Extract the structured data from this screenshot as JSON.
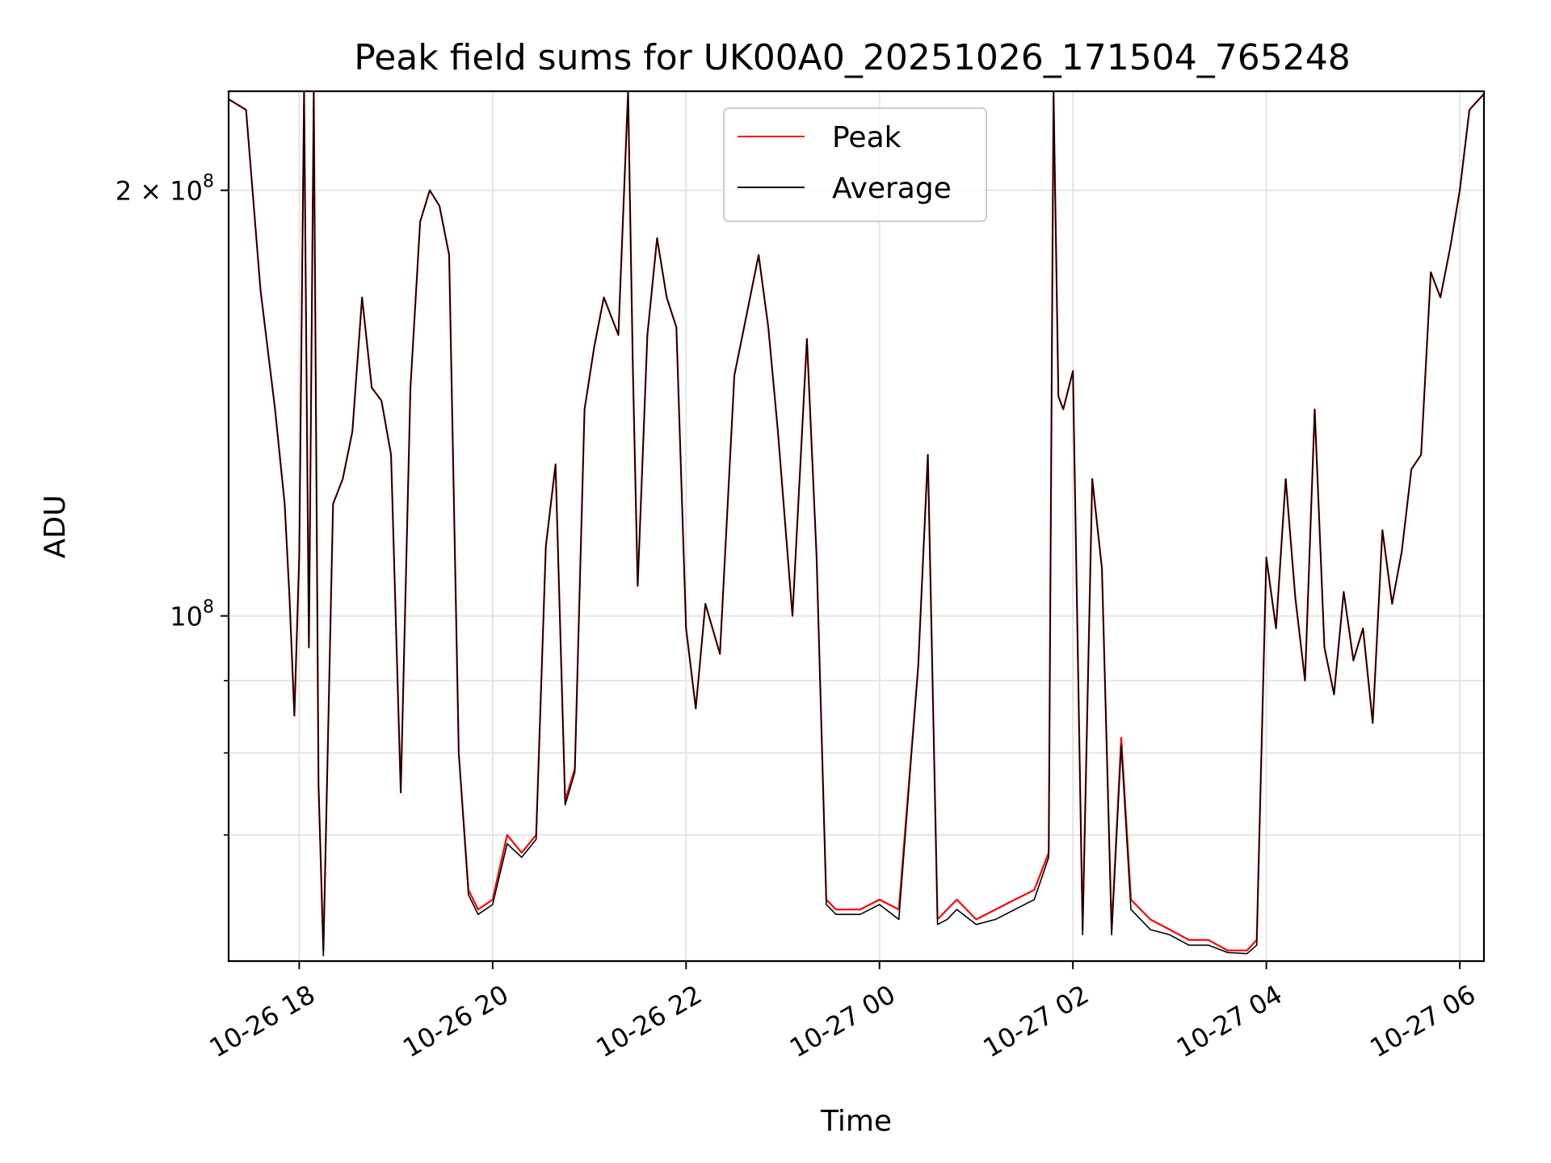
{
  "chart_data": {
    "type": "line",
    "title": "Peak field sums for UK00A0_20251026_171504_765248",
    "xlabel": "Time",
    "ylabel": "ADU",
    "y_scale": "log",
    "ylim": [
      57000000,
      235000000
    ],
    "xlim_hours": [
      17.27,
      6.25
    ],
    "x_ticks": [
      {
        "label": "10-26 18",
        "hour": 18
      },
      {
        "label": "10-26 20",
        "hour": 20
      },
      {
        "label": "10-26 22",
        "hour": 22
      },
      {
        "label": "10-27 00",
        "hour": 24
      },
      {
        "label": "10-27 02",
        "hour": 26
      },
      {
        "label": "10-27 04",
        "hour": 28
      },
      {
        "label": "10-27 06",
        "hour": 30
      }
    ],
    "y_ticks": [
      {
        "label_base": "10",
        "label_exp": "8",
        "value": 100000000
      },
      {
        "label_base": "2 × 10",
        "label_exp": "8",
        "value": 200000000
      }
    ],
    "y_minor_grid": [
      70000000,
      80000000,
      90000000
    ],
    "grid": true,
    "legend": {
      "position": "top-center",
      "entries": [
        "Peak",
        "Average"
      ]
    },
    "colors": {
      "Peak": "#ff0000",
      "Average": "#000000"
    },
    "series": [
      {
        "name": "Peak",
        "color": "#ff0000",
        "x_hours": [
          17.27,
          17.45,
          17.6,
          17.75,
          17.85,
          17.9,
          17.95,
          18.0,
          18.05,
          18.1,
          18.15,
          18.2,
          18.25,
          18.35,
          18.45,
          18.55,
          18.65,
          18.75,
          18.85,
          18.95,
          19.05,
          19.15,
          19.25,
          19.35,
          19.45,
          19.55,
          19.65,
          19.75,
          19.85,
          20.0,
          20.15,
          20.3,
          20.45,
          20.55,
          20.65,
          20.75,
          20.85,
          20.95,
          21.05,
          21.15,
          21.3,
          21.4,
          21.45,
          21.5,
          21.6,
          21.7,
          21.8,
          21.9,
          22.0,
          22.1,
          22.2,
          22.35,
          22.5,
          22.6,
          22.75,
          22.85,
          22.95,
          23.1,
          23.25,
          23.35,
          23.45,
          23.55,
          23.65,
          23.8,
          24.0,
          24.2,
          24.4,
          24.5,
          24.6,
          24.7,
          24.8,
          25.0,
          25.2,
          25.4,
          25.6,
          25.75,
          25.8,
          25.85,
          25.9,
          26.0,
          26.1,
          26.2,
          26.3,
          26.4,
          26.5,
          26.6,
          26.7,
          26.8,
          27.0,
          27.2,
          27.4,
          27.6,
          27.8,
          27.9,
          28.0,
          28.1,
          28.2,
          28.3,
          28.4,
          28.5,
          28.6,
          28.7,
          28.8,
          28.9,
          29.0,
          29.1,
          29.2,
          29.3,
          29.4,
          29.5,
          29.6,
          29.7,
          29.8,
          29.9,
          30.0,
          30.1,
          30.25
        ],
        "values": [
          232000000,
          228000000,
          170000000,
          140000000,
          120000000,
          103000000,
          85000000,
          110000000,
          235000000,
          95000000,
          235000000,
          76000000,
          58000000,
          120000000,
          125000000,
          135000000,
          168000000,
          145000000,
          142000000,
          130000000,
          75000000,
          145000000,
          190000000,
          200000000,
          195000000,
          180000000,
          80000000,
          64000000,
          62000000,
          63000000,
          70000000,
          68000000,
          70000000,
          112000000,
          128000000,
          74000000,
          78000000,
          140000000,
          155000000,
          168000000,
          158000000,
          235000000,
          150000000,
          105000000,
          158000000,
          185000000,
          168000000,
          160000000,
          98000000,
          86000000,
          102000000,
          94000000,
          148000000,
          160000000,
          180000000,
          160000000,
          135000000,
          100000000,
          157000000,
          110000000,
          63000000,
          62000000,
          62000000,
          62000000,
          63000000,
          62000000,
          92000000,
          130000000,
          61000000,
          62000000,
          63000000,
          61000000,
          62000000,
          63000000,
          64000000,
          68000000,
          235000000,
          143000000,
          140000000,
          149000000,
          60000000,
          125000000,
          108000000,
          60000000,
          82000000,
          63000000,
          62000000,
          61000000,
          60000000,
          59000000,
          59000000,
          58000000,
          58000000,
          59000000,
          110000000,
          98000000,
          125000000,
          103000000,
          90000000,
          140000000,
          95000000,
          88000000,
          104000000,
          93000000,
          98000000,
          84000000,
          115000000,
          102000000,
          111000000,
          127000000,
          130000000,
          175000000,
          168000000,
          182000000,
          200000000,
          228000000,
          234000000
        ],
        "note": "Peak series closely follows Average with small positive noise spikes"
      },
      {
        "name": "Average",
        "color": "#000000",
        "x_hours": [
          17.27,
          17.45,
          17.6,
          17.75,
          17.85,
          17.9,
          17.95,
          18.0,
          18.05,
          18.1,
          18.15,
          18.2,
          18.25,
          18.35,
          18.45,
          18.55,
          18.65,
          18.75,
          18.85,
          18.95,
          19.05,
          19.15,
          19.25,
          19.35,
          19.45,
          19.55,
          19.65,
          19.75,
          19.85,
          20.0,
          20.15,
          20.3,
          20.45,
          20.55,
          20.65,
          20.75,
          20.85,
          20.95,
          21.05,
          21.15,
          21.3,
          21.4,
          21.45,
          21.5,
          21.6,
          21.7,
          21.8,
          21.9,
          22.0,
          22.1,
          22.2,
          22.35,
          22.5,
          22.6,
          22.75,
          22.85,
          22.95,
          23.1,
          23.25,
          23.35,
          23.45,
          23.55,
          23.65,
          23.8,
          24.0,
          24.2,
          24.4,
          24.5,
          24.6,
          24.7,
          24.8,
          25.0,
          25.2,
          25.4,
          25.6,
          25.75,
          25.8,
          25.85,
          25.9,
          26.0,
          26.1,
          26.2,
          26.3,
          26.4,
          26.5,
          26.6,
          26.7,
          26.8,
          27.0,
          27.2,
          27.4,
          27.6,
          27.8,
          27.9,
          28.0,
          28.1,
          28.2,
          28.3,
          28.4,
          28.5,
          28.6,
          28.7,
          28.8,
          28.9,
          29.0,
          29.1,
          29.2,
          29.3,
          29.4,
          29.5,
          29.6,
          29.7,
          29.8,
          29.9,
          30.0,
          30.1,
          30.25
        ],
        "values": [
          232000000,
          228000000,
          170000000,
          140000000,
          120000000,
          103000000,
          85000000,
          110000000,
          235000000,
          95000000,
          235000000,
          76000000,
          57500000,
          120000000,
          125000000,
          135000000,
          168000000,
          145000000,
          142000000,
          130000000,
          75000000,
          145000000,
          190000000,
          200000000,
          195000000,
          180000000,
          80000000,
          63500000,
          61500000,
          62500000,
          69000000,
          67500000,
          69500000,
          112000000,
          128000000,
          73500000,
          77500000,
          140000000,
          155000000,
          168000000,
          158000000,
          235000000,
          150000000,
          105000000,
          158000000,
          185000000,
          168000000,
          160000000,
          98000000,
          86000000,
          102000000,
          94000000,
          148000000,
          160000000,
          180000000,
          160000000,
          135000000,
          100000000,
          157000000,
          110000000,
          62500000,
          61500000,
          61500000,
          61500000,
          62500000,
          61000000,
          92000000,
          130000000,
          60500000,
          61000000,
          62000000,
          60500000,
          61000000,
          62000000,
          63000000,
          67500000,
          235000000,
          143000000,
          140000000,
          149000000,
          59500000,
          125000000,
          108000000,
          59500000,
          81000000,
          62000000,
          61000000,
          60000000,
          59500000,
          58500000,
          58500000,
          57800000,
          57700000,
          58500000,
          110000000,
          98000000,
          125000000,
          103000000,
          90000000,
          140000000,
          95000000,
          88000000,
          104000000,
          93000000,
          98000000,
          84000000,
          115000000,
          102000000,
          111000000,
          127000000,
          130000000,
          175000000,
          168000000,
          182000000,
          200000000,
          228000000,
          234000000
        ]
      }
    ]
  }
}
